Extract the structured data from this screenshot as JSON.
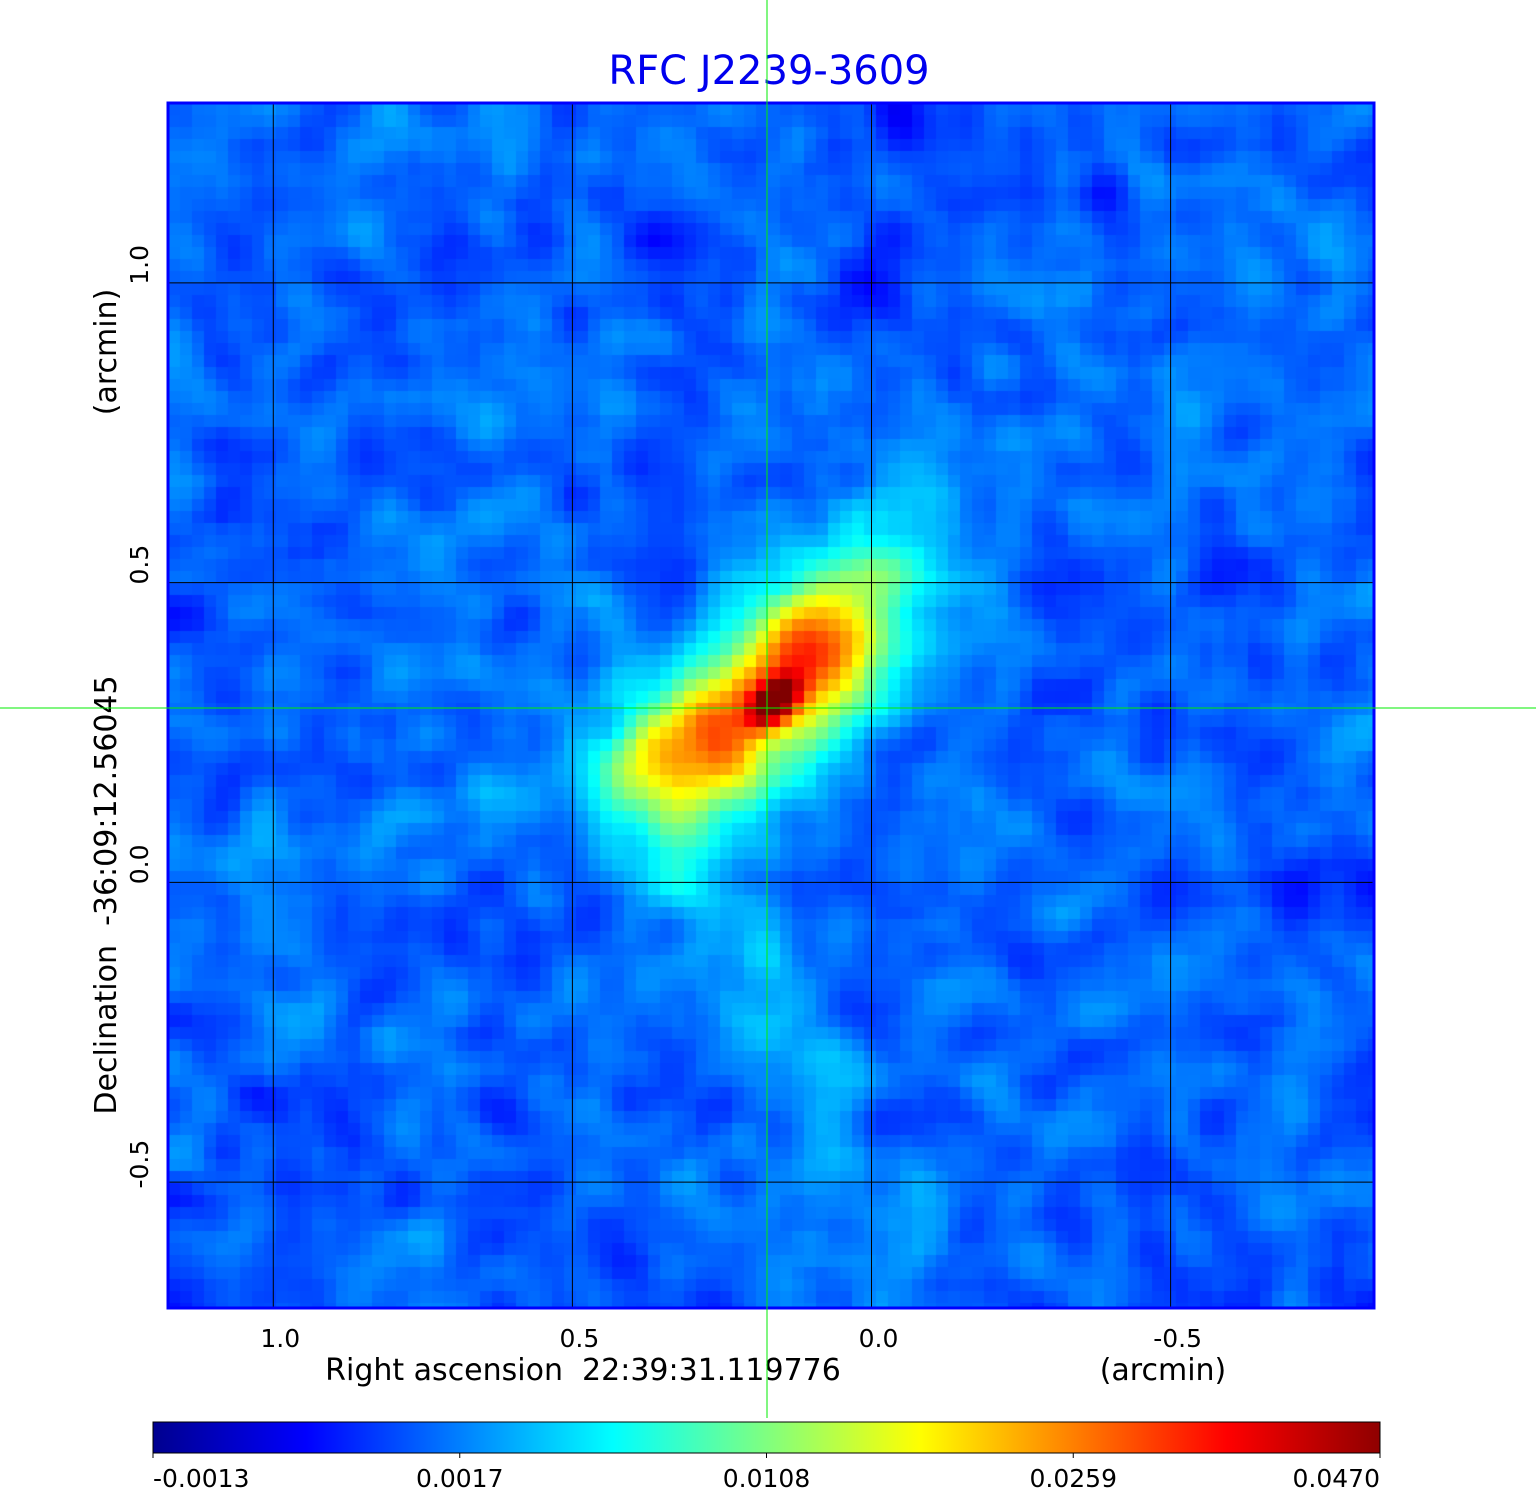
{
  "chart_data": {
    "type": "heatmap",
    "title": "RFC J2239-3609",
    "xlabel": "Right ascension  22:39:31.119776",
    "xunit": "(arcmin)",
    "ylabel": "Declination  -36:09:12.56045",
    "yunit": "(arcmin)",
    "xticks": [
      1.0,
      0.5,
      0.0,
      -0.5
    ],
    "xtick_labels": [
      "1.0",
      "0.5",
      "0.0",
      "-0.5"
    ],
    "xlim": [
      1.176,
      -0.84
    ],
    "yticks": [
      1.0,
      0.5,
      0.0,
      -0.5
    ],
    "ytick_labels": [
      "1.0",
      "0.5",
      "0.0",
      "-0.5"
    ],
    "ylim": [
      -0.71,
      1.3
    ],
    "grid": true,
    "crosshair": {
      "x": 0.172,
      "y": 0.29
    },
    "colormap": "jet",
    "colorbar": {
      "ticks": [
        "-0.0013",
        "0.0017",
        "0.0108",
        "0.0259",
        "0.0470"
      ],
      "range": [
        -0.0013,
        0.047
      ],
      "placement": "bottom"
    },
    "colors": {
      "title": "#0000ee",
      "frame": "#0000ff",
      "crosshair": "#00ee00",
      "grid": "#000000"
    }
  }
}
